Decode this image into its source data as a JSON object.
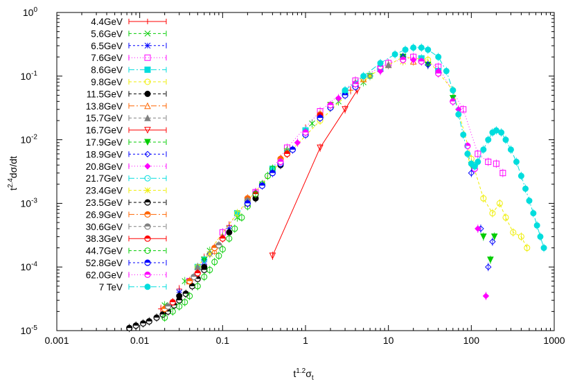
{
  "chart_data": {
    "type": "scatter",
    "xlabel": {
      "base": "t",
      "sup": "1.2",
      "mid": "σ",
      "sub": "t"
    },
    "ylabel": {
      "base": "t",
      "sup": "2.4",
      "rest": "dσ/dt"
    },
    "x_scale": "log",
    "y_scale": "log",
    "xlim": [
      0.001,
      1000
    ],
    "ylim": [
      1e-05,
      1
    ],
    "x_ticks": [
      {
        "v": 0.001,
        "label": "0.001"
      },
      {
        "v": 0.01,
        "label": "0.01"
      },
      {
        "v": 0.1,
        "label": "0.1"
      },
      {
        "v": 1,
        "label": "1"
      },
      {
        "v": 10,
        "label": "10"
      },
      {
        "v": 100,
        "label": "100"
      },
      {
        "v": 1000,
        "label": "1000"
      }
    ],
    "y_ticks": [
      {
        "v": 1,
        "base": "10",
        "exp": "0"
      },
      {
        "v": 0.1,
        "base": "10",
        "exp": "-1"
      },
      {
        "v": 0.01,
        "base": "10",
        "exp": "-2"
      },
      {
        "v": 0.001,
        "base": "10",
        "exp": "-3"
      },
      {
        "v": 0.0001,
        "base": "10",
        "exp": "-4"
      },
      {
        "v": 1e-05,
        "base": "10",
        "exp": "-5"
      }
    ],
    "grid": false,
    "legend_position": "top-left",
    "series": [
      {
        "name": "4.4GeV",
        "color": "#ff0000",
        "marker": "plus",
        "dash": "",
        "x": [
          0.018,
          0.03,
          0.06,
          0.12,
          0.25,
          0.5,
          1.0,
          2.0,
          3.5
        ],
        "y": [
          2.2e-05,
          4.5e-05,
          0.00014,
          0.00045,
          0.0015,
          0.005,
          0.015,
          0.035,
          0.06
        ]
      },
      {
        "name": "5.6GeV",
        "color": "#00cc00",
        "marker": "x",
        "dash": "4,3",
        "x": [
          0.02,
          0.035,
          0.07,
          0.15,
          0.3,
          0.6,
          1.2,
          2.5,
          5
        ],
        "y": [
          2.5e-05,
          6e-05,
          0.00018,
          0.0006,
          0.002,
          0.0065,
          0.018,
          0.04,
          0.08
        ]
      },
      {
        "name": "6.5GeV",
        "color": "#0000ff",
        "marker": "star",
        "dash": "3,3",
        "x": [
          0.03,
          0.06,
          0.12,
          0.25,
          0.5,
          1.0,
          2.0,
          4.0,
          8.0
        ],
        "y": [
          4e-05,
          0.00012,
          0.0004,
          0.0013,
          0.0045,
          0.014,
          0.035,
          0.075,
          0.13
        ]
      },
      {
        "name": "7.6GeV",
        "color": "#ff00ff",
        "marker": "square-open",
        "dash": "1,3",
        "x": [
          0.04,
          0.1,
          0.25,
          0.6,
          1.5,
          4,
          10,
          20,
          40,
          80,
          120,
          160,
          200,
          240
        ],
        "y": [
          6e-05,
          0.00035,
          0.0015,
          0.0075,
          0.028,
          0.085,
          0.16,
          0.2,
          0.14,
          0.03,
          0.006,
          0.0045,
          0.0042,
          0.003
        ]
      },
      {
        "name": "8.6GeV",
        "color": "#00dddd",
        "marker": "square",
        "dash": "8,3,2,3",
        "x": [
          0.05,
          0.15,
          0.4,
          1.0,
          3.0,
          8.0,
          15,
          25,
          40
        ],
        "y": [
          0.0001,
          0.0007,
          0.0035,
          0.014,
          0.055,
          0.13,
          0.2,
          0.19,
          0.12
        ]
      },
      {
        "name": "9.8GeV",
        "color": "#eeee00",
        "marker": "circle-open",
        "dash": "4,3",
        "x": [
          0.05,
          0.15,
          0.5,
          1.5,
          5,
          15,
          30,
          60,
          100,
          140,
          180,
          220,
          260,
          320,
          400,
          470
        ],
        "y": [
          0.0001,
          0.0007,
          0.0045,
          0.02,
          0.09,
          0.2,
          0.18,
          0.06,
          0.005,
          0.0012,
          0.0007,
          0.001,
          0.0006,
          0.00035,
          0.0003,
          0.0002
        ]
      },
      {
        "name": "11.5GeV",
        "color": "#000000",
        "marker": "circle",
        "dash": "4,3",
        "x": [
          0.03,
          0.06,
          0.12,
          0.25,
          0.5,
          1.0,
          2.0,
          4.0
        ],
        "y": [
          3.5e-05,
          0.0001,
          0.00035,
          0.0012,
          0.004,
          0.013,
          0.032,
          0.07
        ]
      },
      {
        "name": "13.8GeV",
        "color": "#ff6600",
        "marker": "triangle-open",
        "dash": "8,3,2,3",
        "x": [
          0.04,
          0.08,
          0.2,
          0.5,
          1.0,
          2.0,
          5.0,
          10,
          20
        ],
        "y": [
          6e-05,
          0.00018,
          0.001,
          0.0045,
          0.013,
          0.035,
          0.09,
          0.15,
          0.17
        ]
      },
      {
        "name": "15.7GeV",
        "color": "#808080",
        "marker": "triangle",
        "dash": "4,3",
        "x": [
          0.05,
          0.1,
          0.25,
          0.6,
          1.5,
          4,
          10
        ],
        "y": [
          0.0001,
          0.0003,
          0.0015,
          0.007,
          0.025,
          0.08,
          0.15
        ]
      },
      {
        "name": "16.7GeV",
        "color": "#ff0000",
        "marker": "triangle-down-open",
        "dash": "",
        "x": [
          0.4,
          1.5,
          3.0,
          4.2
        ],
        "y": [
          0.00015,
          0.0075,
          0.03,
          0.06
        ]
      },
      {
        "name": "17.9GeV",
        "color": "#00cc00",
        "marker": "triangle-down",
        "dash": "4,3",
        "x": [
          0.06,
          0.2,
          0.6,
          2,
          6,
          15,
          30,
          60,
          100,
          140,
          170,
          190
        ],
        "y": [
          0.00013,
          0.001,
          0.0065,
          0.035,
          0.1,
          0.2,
          0.15,
          0.045,
          0.004,
          0.0003,
          0.00013,
          0.0003
        ]
      },
      {
        "name": "18.9GeV",
        "color": "#0000ff",
        "marker": "diamond-open",
        "dash": "3,3",
        "x": [
          0.07,
          0.2,
          0.6,
          2,
          6,
          15,
          30,
          60,
          100,
          130,
          160,
          180
        ],
        "y": [
          0.00016,
          0.001,
          0.0065,
          0.035,
          0.1,
          0.2,
          0.15,
          0.04,
          0.003,
          0.0004,
          0.0001,
          0.00025
        ]
      },
      {
        "name": "20.8GeV",
        "color": "#ff00ff",
        "marker": "diamond",
        "dash": "1,3",
        "x": [
          0.08,
          0.25,
          0.8,
          2.5,
          8,
          20,
          40,
          70,
          90,
          120,
          150
        ],
        "y": [
          0.0002,
          0.0015,
          0.009,
          0.045,
          0.12,
          0.18,
          0.12,
          0.03,
          0.006,
          0.0004,
          3.5e-05
        ]
      },
      {
        "name": "21.7GeV",
        "color": "#00dddd",
        "marker": "circle-open",
        "dash": "8,3,2,3",
        "x": [
          0.06,
          0.2,
          0.6,
          2,
          6,
          15,
          25
        ],
        "y": [
          0.00013,
          0.001,
          0.0065,
          0.035,
          0.1,
          0.18,
          0.17
        ]
      },
      {
        "name": "23.4GeV",
        "color": "#eeee00",
        "marker": "star",
        "dash": "4,3",
        "x": [
          0.07,
          0.2,
          0.6,
          2,
          6,
          15
        ],
        "y": [
          0.00016,
          0.001,
          0.0065,
          0.035,
          0.1,
          0.17
        ]
      },
      {
        "name": "23.5GeV",
        "color": "#000000",
        "marker": "circle-half",
        "dash": "4,3",
        "x": [
          0.0075,
          0.009,
          0.011,
          0.013,
          0.016,
          0.019,
          0.022,
          0.026,
          0.03,
          0.036,
          0.043,
          0.05,
          0.06
        ],
        "y": [
          1.1e-05,
          1.2e-05,
          1.3e-05,
          1.4e-05,
          1.6e-05,
          1.8e-05,
          2e-05,
          2.5e-05,
          3e-05,
          3.8e-05,
          5e-05,
          6.5e-05,
          9e-05
        ]
      },
      {
        "name": "26.9GeV",
        "color": "#ff6600",
        "marker": "circle-half",
        "dash": "8,3,2,3",
        "x": [
          0.02,
          0.04,
          0.08,
          0.2,
          0.5,
          1.5,
          4
        ],
        "y": [
          2.2e-05,
          6e-05,
          0.0002,
          0.0012,
          0.005,
          0.025,
          0.075
        ]
      },
      {
        "name": "30.6GeV",
        "color": "#808080",
        "marker": "circle-half",
        "dash": "4,3",
        "x": [
          0.022,
          0.045,
          0.09,
          0.2,
          0.5,
          1.5,
          4
        ],
        "y": [
          2.4e-05,
          7e-05,
          0.00022,
          0.0011,
          0.0045,
          0.024,
          0.07
        ]
      },
      {
        "name": "38.3GeV",
        "color": "#ff0000",
        "marker": "circle-half",
        "dash": "",
        "x": [
          0.025,
          0.05,
          0.1,
          0.25,
          0.6,
          1.5,
          4
        ],
        "y": [
          2.8e-05,
          8e-05,
          0.00028,
          0.0014,
          0.006,
          0.024,
          0.07
        ]
      },
      {
        "name": "44.7GeV",
        "color": "#00cc00",
        "marker": "circle-open",
        "dash": "4,3",
        "x": [
          0.02,
          0.025,
          0.03,
          0.035,
          0.04,
          0.05,
          0.06,
          0.07,
          0.08,
          0.09,
          0.1,
          0.12,
          0.14,
          0.17,
          0.2,
          0.25,
          0.3,
          0.35,
          0.4
        ],
        "y": [
          1.6e-05,
          2e-05,
          2.4e-05,
          2.8e-05,
          3.5e-05,
          5e-05,
          7e-05,
          9e-05,
          0.00012,
          0.00015,
          0.00019,
          0.00028,
          0.0004,
          0.0006,
          0.0009,
          0.0014,
          0.002,
          0.0027,
          0.0035
        ]
      },
      {
        "name": "52.8GeV",
        "color": "#0000ff",
        "marker": "circle-half",
        "dash": "3,3",
        "x": [
          0.2,
          0.3,
          0.4,
          0.5,
          0.7,
          1.0,
          1.5,
          2,
          3,
          4
        ],
        "y": [
          0.001,
          0.0019,
          0.003,
          0.0042,
          0.007,
          0.012,
          0.022,
          0.032,
          0.05,
          0.068
        ]
      },
      {
        "name": "62.0GeV",
        "color": "#ff00ff",
        "marker": "circle-half",
        "dash": "1,3",
        "x": [
          0.5,
          1,
          2,
          4,
          8,
          15,
          25,
          40,
          60,
          90,
          110
        ],
        "y": [
          0.0045,
          0.013,
          0.035,
          0.075,
          0.14,
          0.18,
          0.17,
          0.11,
          0.04,
          0.008,
          0.0035
        ]
      },
      {
        "name": "7 TeV",
        "color": "#00dddd",
        "marker": "circle",
        "dash": "8,3,2,3",
        "x": [
          3,
          5,
          8,
          12,
          16,
          20,
          25,
          30,
          40,
          50,
          60,
          70,
          80,
          90,
          100,
          110,
          120,
          140,
          160,
          180,
          200,
          230,
          260,
          300,
          350,
          400,
          450,
          500,
          560,
          620,
          680,
          750
        ],
        "y": [
          0.06,
          0.1,
          0.16,
          0.22,
          0.26,
          0.28,
          0.28,
          0.26,
          0.2,
          0.12,
          0.06,
          0.025,
          0.012,
          0.006,
          0.0042,
          0.0038,
          0.0045,
          0.007,
          0.01,
          0.013,
          0.014,
          0.013,
          0.01,
          0.007,
          0.0045,
          0.0027,
          0.0017,
          0.0011,
          0.0007,
          0.00045,
          0.0003,
          0.0002
        ]
      }
    ]
  }
}
